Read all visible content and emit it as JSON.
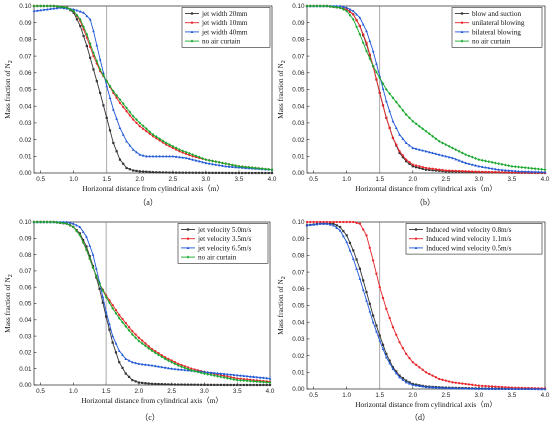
{
  "chart_data": [
    {
      "type": "line",
      "caption": "（a）",
      "xlabel": "Horizontal distance from cylindrical axis（m）",
      "ylabel": "Mass fraction of N",
      "ylabel_sub": "2",
      "xlim": [
        0.4,
        4.0
      ],
      "ylim": [
        0,
        0.1
      ],
      "xticks": [
        "0.5",
        "1.0",
        "1.5",
        "2.0",
        "2.5",
        "3.0",
        "3.5",
        "4.0"
      ],
      "yticks": [
        "0.00",
        "0.01",
        "0.02",
        "0.03",
        "0.04",
        "0.05",
        "0.06",
        "0.07",
        "0.08",
        "0.09",
        "0.10"
      ],
      "vline": 1.5,
      "series": [
        {
          "name": "jet width 20mm",
          "color": "#333333",
          "marker": "square",
          "x": [
            0.4,
            0.7,
            0.9,
            1.0,
            1.1,
            1.2,
            1.3,
            1.4,
            1.5,
            1.6,
            1.7,
            1.8,
            1.9,
            2.0,
            2.2,
            2.5,
            3.0,
            3.5,
            4.0
          ],
          "y": [
            0.1,
            0.1,
            0.099,
            0.096,
            0.088,
            0.076,
            0.062,
            0.048,
            0.033,
            0.018,
            0.008,
            0.003,
            0.0015,
            0.001,
            0.0005,
            0.0002,
            0.0001,
            0.0,
            0.0
          ]
        },
        {
          "name": "jet width 10mm",
          "color": "#e8262b",
          "marker": "circle",
          "x": [
            0.4,
            0.7,
            0.9,
            1.0,
            1.1,
            1.2,
            1.3,
            1.4,
            1.5,
            1.6,
            1.7,
            1.8,
            1.9,
            2.0,
            2.2,
            2.4,
            2.6,
            2.8,
            3.0,
            3.5,
            4.0
          ],
          "y": [
            0.1,
            0.1,
            0.099,
            0.097,
            0.091,
            0.081,
            0.07,
            0.061,
            0.055,
            0.048,
            0.042,
            0.037,
            0.032,
            0.028,
            0.022,
            0.017,
            0.013,
            0.01,
            0.008,
            0.004,
            0.002
          ]
        },
        {
          "name": "jet width 40mm",
          "color": "#1f57d6",
          "marker": "triangle",
          "x": [
            0.4,
            0.6,
            0.8,
            1.0,
            1.15,
            1.25,
            1.3,
            1.4,
            1.5,
            1.6,
            1.7,
            1.8,
            1.9,
            2.0,
            2.1,
            2.2,
            2.3,
            2.5,
            2.7,
            3.0,
            3.3,
            3.6,
            4.0
          ],
          "y": [
            0.097,
            0.098,
            0.099,
            0.098,
            0.096,
            0.092,
            0.085,
            0.068,
            0.052,
            0.038,
            0.027,
            0.019,
            0.014,
            0.011,
            0.01,
            0.01,
            0.01,
            0.01,
            0.009,
            0.006,
            0.004,
            0.003,
            0.002
          ]
        },
        {
          "name": "no air curtain",
          "color": "#18a82e",
          "marker": "diamond",
          "x": [
            0.4,
            0.7,
            0.9,
            1.0,
            1.1,
            1.2,
            1.3,
            1.4,
            1.5,
            1.6,
            1.7,
            1.8,
            1.9,
            2.0,
            2.2,
            2.4,
            2.6,
            2.8,
            3.0,
            3.5,
            4.0
          ],
          "y": [
            0.1,
            0.1,
            0.099,
            0.097,
            0.092,
            0.083,
            0.072,
            0.062,
            0.055,
            0.049,
            0.044,
            0.039,
            0.034,
            0.03,
            0.023,
            0.018,
            0.014,
            0.011,
            0.008,
            0.004,
            0.002
          ]
        }
      ]
    },
    {
      "type": "line",
      "caption": "（b）",
      "xlabel": "Horizontal distance from cylindrical axis（m）",
      "ylabel": "Mass fraction of N",
      "ylabel_sub": "2",
      "xlim": [
        0.4,
        4.0
      ],
      "ylim": [
        0,
        0.1
      ],
      "xticks": [
        "0.5",
        "1.0",
        "1.5",
        "2.0",
        "2.5",
        "3.0",
        "3.5",
        "4.0"
      ],
      "yticks": [
        "0.00",
        "0.01",
        "0.02",
        "0.03",
        "0.04",
        "0.05",
        "0.06",
        "0.07",
        "0.08",
        "0.09",
        "0.10"
      ],
      "vline": 1.5,
      "series": [
        {
          "name": "blow and suction",
          "color": "#333333",
          "marker": "square",
          "x": [
            0.4,
            0.7,
            0.9,
            1.0,
            1.1,
            1.2,
            1.3,
            1.4,
            1.5,
            1.6,
            1.7,
            1.8,
            1.9,
            2.0,
            2.2,
            2.5,
            3.0,
            3.5,
            4.0
          ],
          "y": [
            0.1,
            0.1,
            0.099,
            0.098,
            0.095,
            0.088,
            0.077,
            0.064,
            0.048,
            0.033,
            0.021,
            0.012,
            0.007,
            0.004,
            0.002,
            0.001,
            0.0005,
            0.0002,
            0.0
          ]
        },
        {
          "name": "unilateral blowing",
          "color": "#e8262b",
          "marker": "circle",
          "x": [
            0.4,
            0.7,
            0.9,
            1.0,
            1.1,
            1.2,
            1.3,
            1.4,
            1.5,
            1.6,
            1.7,
            1.8,
            1.9,
            2.0,
            2.2,
            2.5,
            3.0,
            3.5,
            4.0
          ],
          "y": [
            0.1,
            0.1,
            0.099,
            0.098,
            0.095,
            0.088,
            0.078,
            0.064,
            0.048,
            0.033,
            0.021,
            0.013,
            0.008,
            0.005,
            0.003,
            0.0015,
            0.0007,
            0.0003,
            0.0001
          ]
        },
        {
          "name": "bilateral blowing",
          "color": "#1f57d6",
          "marker": "triangle",
          "x": [
            0.4,
            0.7,
            0.9,
            1.0,
            1.1,
            1.2,
            1.3,
            1.4,
            1.5,
            1.6,
            1.7,
            1.8,
            1.9,
            2.0,
            2.2,
            2.4,
            2.6,
            2.8,
            3.0,
            3.3,
            3.6,
            4.0
          ],
          "y": [
            0.1,
            0.1,
            0.1,
            0.099,
            0.097,
            0.093,
            0.085,
            0.073,
            0.058,
            0.043,
            0.031,
            0.023,
            0.018,
            0.015,
            0.013,
            0.011,
            0.009,
            0.006,
            0.004,
            0.002,
            0.001,
            0.0005
          ]
        },
        {
          "name": "no air curtain",
          "color": "#18a82e",
          "marker": "diamond",
          "x": [
            0.4,
            0.7,
            0.9,
            1.0,
            1.1,
            1.2,
            1.3,
            1.4,
            1.5,
            1.6,
            1.7,
            1.8,
            1.9,
            2.0,
            2.2,
            2.4,
            2.6,
            2.8,
            3.0,
            3.5,
            4.0
          ],
          "y": [
            0.1,
            0.1,
            0.099,
            0.097,
            0.092,
            0.083,
            0.073,
            0.064,
            0.057,
            0.05,
            0.045,
            0.04,
            0.035,
            0.031,
            0.025,
            0.019,
            0.015,
            0.011,
            0.008,
            0.004,
            0.002
          ]
        }
      ]
    },
    {
      "type": "line",
      "caption": "（c）",
      "xlabel": "Horizontal distance from cylindrical axis（m）",
      "ylabel": "Mass fraction of N",
      "ylabel_sub": "2",
      "xlim": [
        0.4,
        4.0
      ],
      "ylim": [
        0,
        0.1
      ],
      "xticks": [
        "0.5",
        "1.0",
        "1.5",
        "2.0",
        "2.5",
        "3.0",
        "3.5",
        "4.0"
      ],
      "yticks": [
        "0.00",
        "0.01",
        "0.02",
        "0.03",
        "0.04",
        "0.05",
        "0.06",
        "0.07",
        "0.08",
        "0.09",
        "0.10"
      ],
      "vline": 1.5,
      "series": [
        {
          "name": "jet velocity 5.0m/s",
          "color": "#333333",
          "marker": "square",
          "x": [
            0.4,
            0.7,
            0.9,
            1.0,
            1.1,
            1.2,
            1.3,
            1.4,
            1.5,
            1.6,
            1.7,
            1.8,
            1.9,
            2.0,
            2.2,
            2.5,
            3.0,
            3.5,
            4.0
          ],
          "y": [
            0.1,
            0.1,
            0.099,
            0.097,
            0.093,
            0.085,
            0.073,
            0.059,
            0.042,
            0.026,
            0.014,
            0.007,
            0.003,
            0.0015,
            0.0007,
            0.0003,
            0.0001,
            0.0,
            0.0
          ]
        },
        {
          "name": "jet velocity 3.5m/s",
          "color": "#e8262b",
          "marker": "circle",
          "x": [
            0.4,
            0.7,
            0.9,
            1.0,
            1.1,
            1.2,
            1.3,
            1.4,
            1.5,
            1.6,
            1.7,
            1.8,
            1.9,
            2.0,
            2.2,
            2.4,
            2.6,
            2.8,
            3.0,
            3.5,
            4.0
          ],
          "y": [
            0.1,
            0.1,
            0.099,
            0.097,
            0.092,
            0.083,
            0.072,
            0.062,
            0.055,
            0.049,
            0.043,
            0.038,
            0.033,
            0.029,
            0.022,
            0.017,
            0.013,
            0.01,
            0.008,
            0.004,
            0.002
          ]
        },
        {
          "name": "jet velocity 6.5m/s",
          "color": "#1f57d6",
          "marker": "triangle",
          "x": [
            0.4,
            0.7,
            0.9,
            1.0,
            1.1,
            1.2,
            1.3,
            1.4,
            1.5,
            1.6,
            1.7,
            1.8,
            1.9,
            2.0,
            2.2,
            2.5,
            3.0,
            3.5,
            4.0
          ],
          "y": [
            0.1,
            0.1,
            0.1,
            0.099,
            0.097,
            0.091,
            0.08,
            0.063,
            0.045,
            0.03,
            0.021,
            0.016,
            0.014,
            0.013,
            0.012,
            0.01,
            0.008,
            0.006,
            0.004
          ]
        },
        {
          "name": "no air curtain",
          "color": "#18a82e",
          "marker": "diamond",
          "x": [
            0.4,
            0.7,
            0.9,
            1.0,
            1.1,
            1.2,
            1.3,
            1.4,
            1.5,
            1.6,
            1.7,
            1.8,
            1.9,
            2.0,
            2.2,
            2.4,
            2.6,
            2.8,
            3.0,
            3.5,
            4.0
          ],
          "y": [
            0.1,
            0.1,
            0.099,
            0.097,
            0.092,
            0.083,
            0.072,
            0.062,
            0.054,
            0.047,
            0.041,
            0.036,
            0.031,
            0.027,
            0.021,
            0.016,
            0.012,
            0.009,
            0.007,
            0.003,
            0.0015
          ]
        }
      ]
    },
    {
      "type": "line",
      "caption": "（d）",
      "xlabel": "Horizontal distance from cylindrical axis（m）",
      "ylabel": "Mass fraction of N",
      "ylabel_sub": "2",
      "xlim": [
        0.4,
        4.0
      ],
      "ylim": [
        0,
        0.1
      ],
      "xticks": [
        "0.5",
        "1.0",
        "1.5",
        "2.0",
        "2.5",
        "3.0",
        "3.5",
        "4.0"
      ],
      "yticks": [
        "0.00",
        "0.01",
        "0.02",
        "0.03",
        "0.04",
        "0.05",
        "0.06",
        "0.07",
        "0.08",
        "0.09",
        "0.10"
      ],
      "vline": 1.5,
      "series": [
        {
          "name": "Induced wind velocity 0.8m/s",
          "color": "#333333",
          "marker": "square",
          "x": [
            0.4,
            0.6,
            0.8,
            0.9,
            1.0,
            1.1,
            1.2,
            1.3,
            1.4,
            1.5,
            1.6,
            1.7,
            1.8,
            1.9,
            2.0,
            2.2,
            2.5,
            3.0,
            3.5,
            4.0
          ],
          "y": [
            0.098,
            0.099,
            0.099,
            0.097,
            0.092,
            0.083,
            0.072,
            0.058,
            0.044,
            0.032,
            0.021,
            0.013,
            0.008,
            0.005,
            0.003,
            0.0015,
            0.0008,
            0.0003,
            0.0001,
            0.0
          ]
        },
        {
          "name": "Induced wind velocity 1.1m/s",
          "color": "#e8262b",
          "marker": "circle",
          "x": [
            0.4,
            0.7,
            0.9,
            1.0,
            1.1,
            1.2,
            1.3,
            1.4,
            1.5,
            1.6,
            1.7,
            1.8,
            1.9,
            2.0,
            2.2,
            2.4,
            2.6,
            2.8,
            3.0,
            3.5,
            4.0
          ],
          "y": [
            0.1,
            0.1,
            0.1,
            0.1,
            0.1,
            0.099,
            0.092,
            0.077,
            0.061,
            0.048,
            0.037,
            0.028,
            0.021,
            0.016,
            0.01,
            0.006,
            0.004,
            0.003,
            0.002,
            0.0008,
            0.0003
          ]
        },
        {
          "name": "Induced wind velocity 0.5m/s",
          "color": "#1f57d6",
          "marker": "triangle",
          "x": [
            0.4,
            0.6,
            0.7,
            0.8,
            0.9,
            1.0,
            1.1,
            1.2,
            1.3,
            1.4,
            1.5,
            1.6,
            1.7,
            1.8,
            1.9,
            2.0,
            2.2,
            2.5,
            3.0,
            3.5,
            4.0
          ],
          "y": [
            0.098,
            0.099,
            0.099,
            0.098,
            0.095,
            0.088,
            0.078,
            0.066,
            0.053,
            0.04,
            0.029,
            0.019,
            0.012,
            0.007,
            0.004,
            0.0025,
            0.0012,
            0.0006,
            0.0002,
            0.0001,
            0.0
          ]
        }
      ]
    }
  ]
}
